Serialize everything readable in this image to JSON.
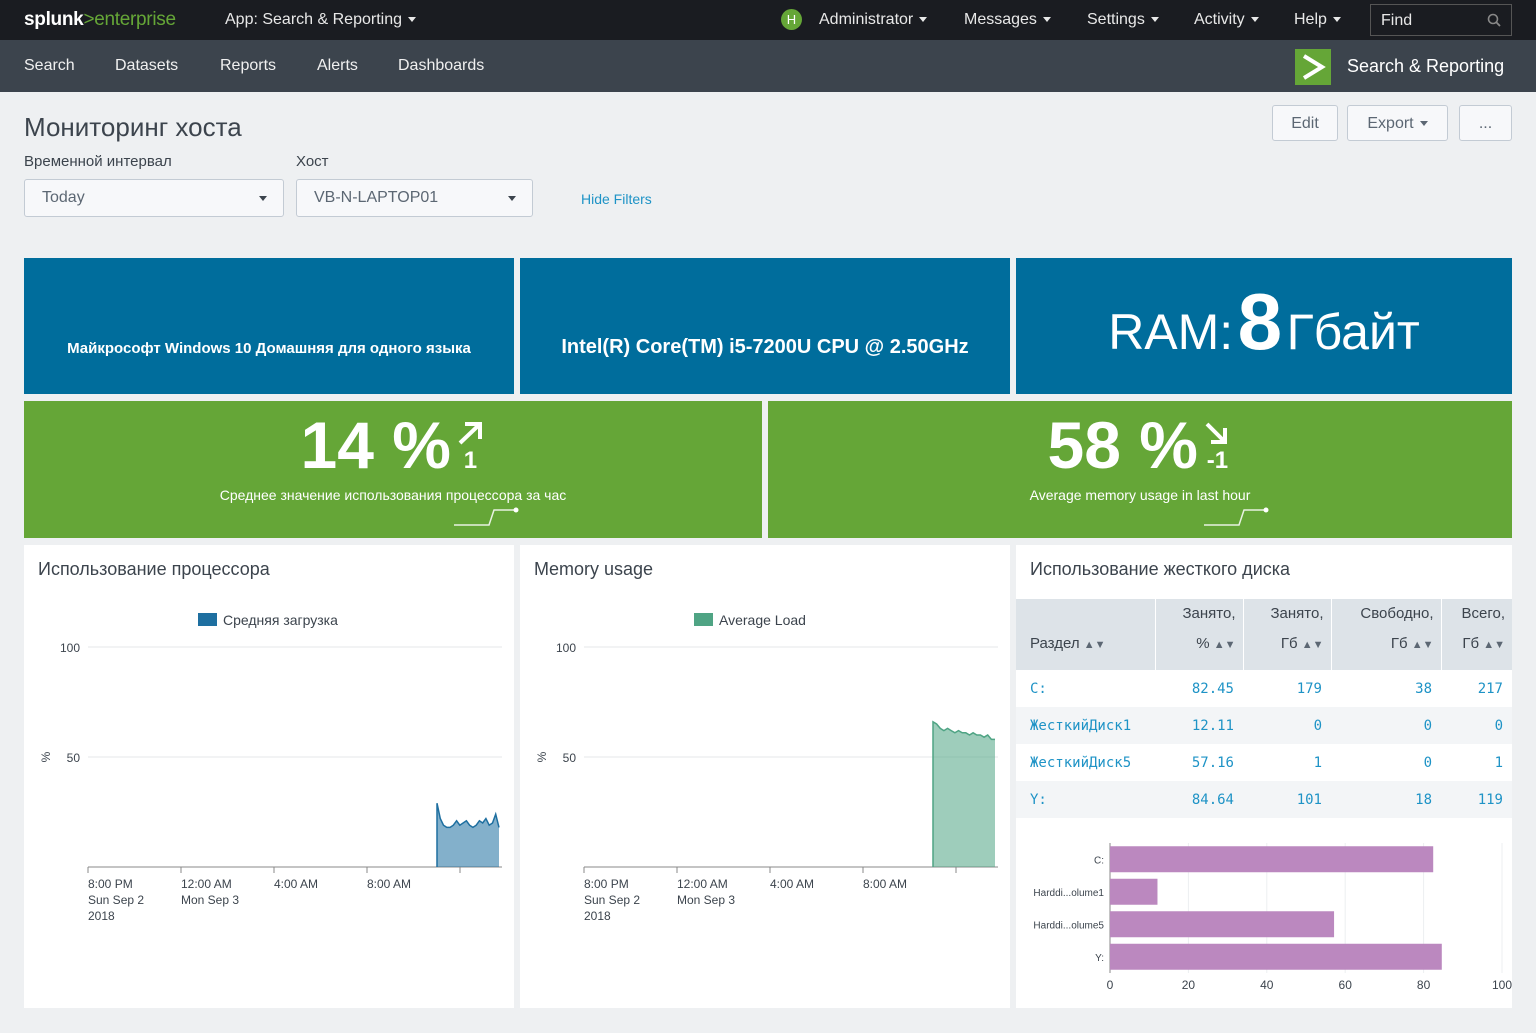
{
  "topbar": {
    "logo_splunk": "splunk",
    "logo_gt": ">",
    "logo_enterprise": "enterprise",
    "app_menu": "App: Search & Reporting",
    "avatar_letter": "H",
    "user": "Administrator",
    "messages": "Messages",
    "settings": "Settings",
    "activity": "Activity",
    "help": "Help",
    "find_placeholder": "Find"
  },
  "subnav": {
    "items": [
      "Search",
      "Datasets",
      "Reports",
      "Alerts",
      "Dashboards"
    ],
    "app_title": "Search & Reporting"
  },
  "dashboard": {
    "title": "Мониторинг хоста",
    "edit": "Edit",
    "export": "Export",
    "more": "...",
    "filters": {
      "time_label": "Временной интервал",
      "time_value": "Today",
      "host_label": "Хост",
      "host_value": "VB-N-LAPTOP01",
      "hide_filters": "Hide Filters"
    }
  },
  "tiles": {
    "os": "Майкрософт Windows 10 Домашняя для одного языка",
    "cpu": "Intel(R) Core(TM) i5-7200U CPU @ 2.50GHz",
    "ram_prefix": "RAM:",
    "ram_value": "8",
    "ram_unit": "Гбайт",
    "colors": {
      "blue": "#006d9c",
      "green": "#65a637"
    }
  },
  "singles": [
    {
      "value": "14 %",
      "delta": "1",
      "trend": "up",
      "label": "Среднее значение использования процессора за час"
    },
    {
      "value": "58 %",
      "delta": "-1",
      "trend": "down",
      "label": "Average memory usage in last hour"
    }
  ],
  "cpu_panel": {
    "title": "Использование процессора",
    "chart_data": {
      "type": "area",
      "series": [
        {
          "name": "Средняя загрузка",
          "color": "#1e6fa0",
          "values": [
            29,
            22,
            19,
            18,
            18,
            19,
            21,
            19,
            20,
            21,
            19,
            18,
            19,
            21,
            20,
            22,
            19,
            20,
            24,
            18
          ]
        }
      ],
      "ylabel": "%",
      "ylim": [
        0,
        100
      ],
      "yticks": [
        50,
        100
      ],
      "xticks": [
        [
          "8:00 PM",
          "Sun Sep 2",
          "2018"
        ],
        [
          "12:00 AM",
          "Mon Sep 3"
        ],
        [
          "4:00 AM"
        ],
        [
          "8:00 AM"
        ]
      ]
    }
  },
  "mem_panel": {
    "title": "Memory usage",
    "chart_data": {
      "type": "area",
      "series": [
        {
          "name": "Average Load",
          "color": "#4fa484",
          "values": [
            66,
            65,
            63,
            62,
            63,
            62,
            61,
            62,
            61,
            61,
            60,
            61,
            60,
            60,
            59,
            60,
            58,
            58
          ]
        }
      ],
      "ylabel": "%",
      "ylim": [
        0,
        100
      ],
      "yticks": [
        50,
        100
      ],
      "xticks": [
        [
          "8:00 PM",
          "Sun Sep 2",
          "2018"
        ],
        [
          "12:00 AM",
          "Mon Sep 3"
        ],
        [
          "4:00 AM"
        ],
        [
          "8:00 AM"
        ]
      ]
    }
  },
  "disk_panel": {
    "title": "Использование жесткого диска",
    "columns": [
      {
        "lines": [
          "Раздел"
        ]
      },
      {
        "lines": [
          "Занято,",
          "%"
        ]
      },
      {
        "lines": [
          "Занято,",
          "Гб"
        ]
      },
      {
        "lines": [
          "Свободно,",
          "Гб"
        ]
      },
      {
        "lines": [
          "Всего,",
          "Гб"
        ]
      }
    ],
    "rows": [
      [
        "C:",
        "82.45",
        "179",
        "38",
        "217"
      ],
      [
        "ЖесткийДиск1",
        "12.11",
        "0",
        "0",
        "0"
      ],
      [
        "ЖесткийДиск5",
        "57.16",
        "1",
        "0",
        "1"
      ],
      [
        "Y:",
        "84.64",
        "101",
        "18",
        "119"
      ]
    ],
    "chart_data": {
      "type": "bar",
      "orientation": "horizontal",
      "categories": [
        "C:",
        "Harddi...olume1",
        "Harddi...olume5",
        "Y:"
      ],
      "values": [
        82.45,
        12.11,
        57.16,
        84.64
      ],
      "color": "#bb88bf",
      "xlim": [
        0,
        100
      ],
      "xticks": [
        0,
        20,
        40,
        60,
        80,
        100
      ]
    }
  }
}
